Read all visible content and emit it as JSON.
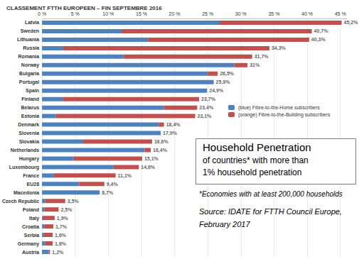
{
  "chart_data": {
    "type": "bar",
    "orientation": "horizontal",
    "stacked": true,
    "grid": true,
    "legend": "right",
    "title": "CLASSEMENT FTTH EUROPEEN – FIN SEPTEMBRE 2016",
    "categories": [
      "Latvia",
      "Sweden",
      "Lithuania",
      "Russia",
      "Romania",
      "Norway",
      "Bulgaria",
      "Portugal",
      "Spain",
      "Finland",
      "Belarus",
      "Estonia",
      "Denmark",
      "Slovenia",
      "Slovakia",
      "Netherlands",
      "Hungary",
      "Luxembourg",
      "France",
      "EU28",
      "Macedonia",
      "Czech Republic",
      "Poland",
      "Italy",
      "Croatia",
      "Serbia",
      "Germany",
      "Austria"
    ],
    "series": [
      {
        "name": "(blue) Fibre-to-the-Home subscribers",
        "color": "#4f81bd",
        "values": [
          26.8,
          12.0,
          16.0,
          3.2,
          12.3,
          29.0,
          25.0,
          25.9,
          24.9,
          3.2,
          18.4,
          2.1,
          17.6,
          17.9,
          6.2,
          15.5,
          4.8,
          10.8,
          1.8,
          5.6,
          8.7,
          0.5,
          0.4,
          0.2,
          0.4,
          0.3,
          0.5,
          1.0
        ]
      },
      {
        "name": "(orange) Fibre-to-the-Building subscribers",
        "color": "#c0504d",
        "values": [
          18.4,
          28.7,
          24.3,
          31.1,
          19.4,
          2.0,
          1.5,
          0,
          0,
          20.5,
          5.0,
          21.0,
          0.8,
          0,
          10.4,
          0.9,
          10.3,
          3.8,
          9.3,
          3.8,
          0,
          3.0,
          2.1,
          1.7,
          1.3,
          1.3,
          1.1,
          0.2
        ]
      }
    ],
    "totals": [
      45.2,
      40.7,
      40.3,
      34.3,
      31.7,
      31,
      26.5,
      25.9,
      24.9,
      23.7,
      23.4,
      23.1,
      18.4,
      17.9,
      16.6,
      16.4,
      15.1,
      14.6,
      11.1,
      9.4,
      8.7,
      3.5,
      2.5,
      1.9,
      1.7,
      1.6,
      1.6,
      1.2
    ],
    "total_labels": [
      "45,2%",
      "40,7%",
      "40,3%",
      "34,3%",
      "31,7%",
      "31%",
      "26,5%",
      "25,9%",
      "24,9%",
      "23,7%",
      "23,4%",
      "23,1%",
      "18,4%",
      "17,9%",
      "16,6%",
      "16,4%",
      "15,1%",
      "14,6%",
      "11,1%",
      "9,4%",
      "8,7%",
      "3,5%",
      "2,5%",
      "1,9%",
      "1,7%",
      "1,6%",
      "1,6%",
      "1,2%"
    ],
    "xlim": [
      0,
      46
    ],
    "xticks": [
      {
        "value": 0,
        "label": "0 %"
      },
      {
        "value": 5,
        "label": "5 %"
      },
      {
        "value": 10,
        "label": "10 %"
      },
      {
        "value": 15,
        "label": "15 %"
      },
      {
        "value": 20,
        "label": "20 %"
      },
      {
        "value": 25,
        "label": "25 %"
      },
      {
        "value": 30,
        "label": "30 %"
      },
      {
        "value": 35,
        "label": "35 %"
      },
      {
        "value": 40,
        "label": "40 %"
      },
      {
        "value": 45,
        "label": "45 %"
      }
    ],
    "annotation_box": [
      "Household Penetration",
      "of countries* with more than",
      "1% household penetration"
    ],
    "annotations": [
      "*Economies with at least 200,000 households",
      "Source: IDATE for FTTH Council Europe,",
      "February 2017"
    ]
  }
}
